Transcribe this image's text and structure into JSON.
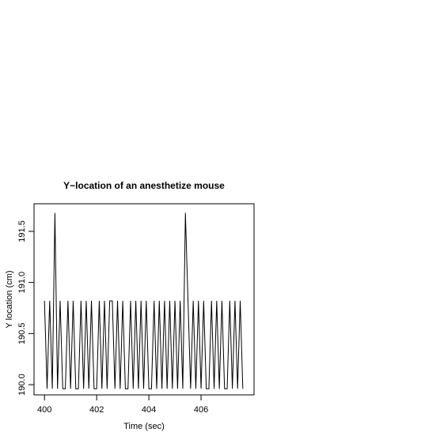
{
  "chart_data": {
    "type": "line",
    "title": "Y−location of an anesthetize mouse",
    "xlabel": "Time (sec)",
    "ylabel": "Y location (cm)",
    "x": [
      400.0,
      400.1,
      400.2,
      400.3,
      400.4,
      400.5,
      400.6,
      400.7,
      400.8,
      400.9,
      401.0,
      401.1,
      401.2,
      401.3,
      401.4,
      401.5,
      401.6,
      401.7,
      401.8,
      401.9,
      402.0,
      402.1,
      402.2,
      402.3,
      402.4,
      402.5,
      402.6,
      402.7,
      402.8,
      402.9,
      403.0,
      403.1,
      403.2,
      403.3,
      403.4,
      403.5,
      403.6,
      403.7,
      403.8,
      403.9,
      404.0,
      404.1,
      404.2,
      404.3,
      404.4,
      404.5,
      404.6,
      404.7,
      404.8,
      404.9,
      405.0,
      405.1,
      405.2,
      405.3,
      405.4,
      405.5,
      405.6,
      405.7,
      405.8,
      405.9,
      406.0,
      406.1,
      406.2,
      406.3,
      406.4,
      406.5,
      406.6,
      406.7,
      406.8,
      406.9,
      407.0,
      407.1,
      407.2,
      407.3,
      407.4,
      407.5,
      407.6
    ],
    "series": [
      {
        "color": "#000000",
        "values": [
          190.82,
          189.96,
          190.82,
          189.96,
          191.68,
          189.96,
          190.82,
          189.96,
          189.96,
          190.82,
          189.96,
          190.82,
          189.96,
          189.96,
          190.82,
          189.96,
          190.82,
          189.96,
          190.82,
          189.96,
          189.96,
          190.82,
          189.96,
          190.82,
          189.96,
          190.82,
          190.82,
          189.96,
          190.82,
          189.96,
          190.82,
          189.96,
          189.96,
          190.82,
          189.96,
          190.82,
          189.96,
          190.82,
          189.96,
          190.82,
          189.96,
          189.96,
          190.82,
          189.96,
          190.82,
          189.96,
          190.82,
          189.96,
          190.82,
          189.96,
          190.82,
          189.96,
          190.82,
          189.96,
          191.68,
          190.82,
          189.96,
          190.82,
          189.96,
          190.82,
          189.96,
          190.82,
          189.96,
          189.96,
          190.82,
          189.96,
          190.82,
          189.96,
          190.82,
          189.96,
          189.96,
          190.82,
          189.96,
          190.82,
          189.96,
          190.82,
          189.96
        ]
      }
    ],
    "xlim": [
      399.6,
      408.03
    ],
    "xticks": [
      400,
      402,
      404,
      406
    ],
    "ylim": [
      189.9,
      191.77
    ],
    "yticks": [
      {
        "value": 190,
        "label": "190.0"
      },
      190.5,
      {
        "value": 191,
        "label": "191.0"
      },
      191.5
    ]
  }
}
